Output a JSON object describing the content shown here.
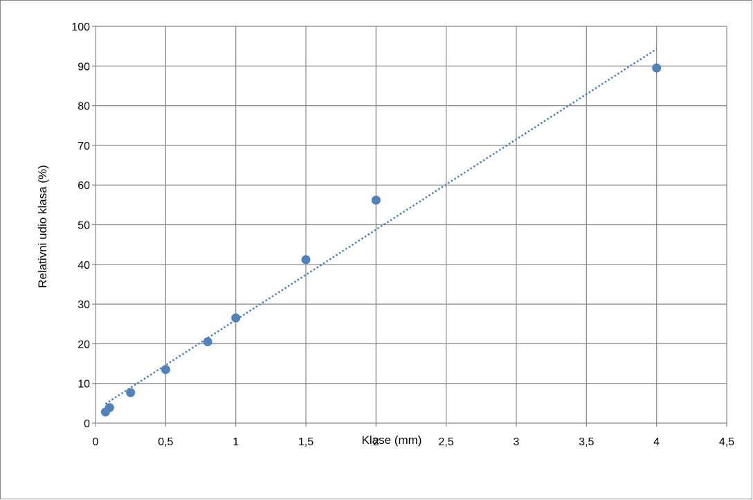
{
  "chart_data": {
    "type": "scatter",
    "xlabel": "Klase (mm)",
    "ylabel": "Relativni udio klasa (%)",
    "xlim": [
      0,
      4.5
    ],
    "ylim": [
      0,
      100
    ],
    "x_ticks": [
      "0",
      "0,5",
      "1",
      "1,5",
      "2",
      "2,5",
      "3",
      "3,5",
      "4",
      "4,5"
    ],
    "y_ticks": [
      "0",
      "10",
      "20",
      "30",
      "40",
      "50",
      "60",
      "70",
      "80",
      "90",
      "100"
    ],
    "grid": true,
    "legend": "none",
    "marker_color": "#4F81BD",
    "series": [
      {
        "x": [
          0.071,
          0.1,
          0.25,
          0.5,
          0.8,
          1.0,
          1.5,
          2.0,
          4.0
        ],
        "values": [
          2.8,
          3.9,
          7.7,
          13.5,
          20.5,
          26.5,
          41.2,
          56.2,
          89.5
        ]
      }
    ],
    "trendline": {
      "style": "dotted",
      "type": "linear",
      "color": "#4F81BD",
      "x_range": [
        0.071,
        4.0
      ]
    }
  }
}
